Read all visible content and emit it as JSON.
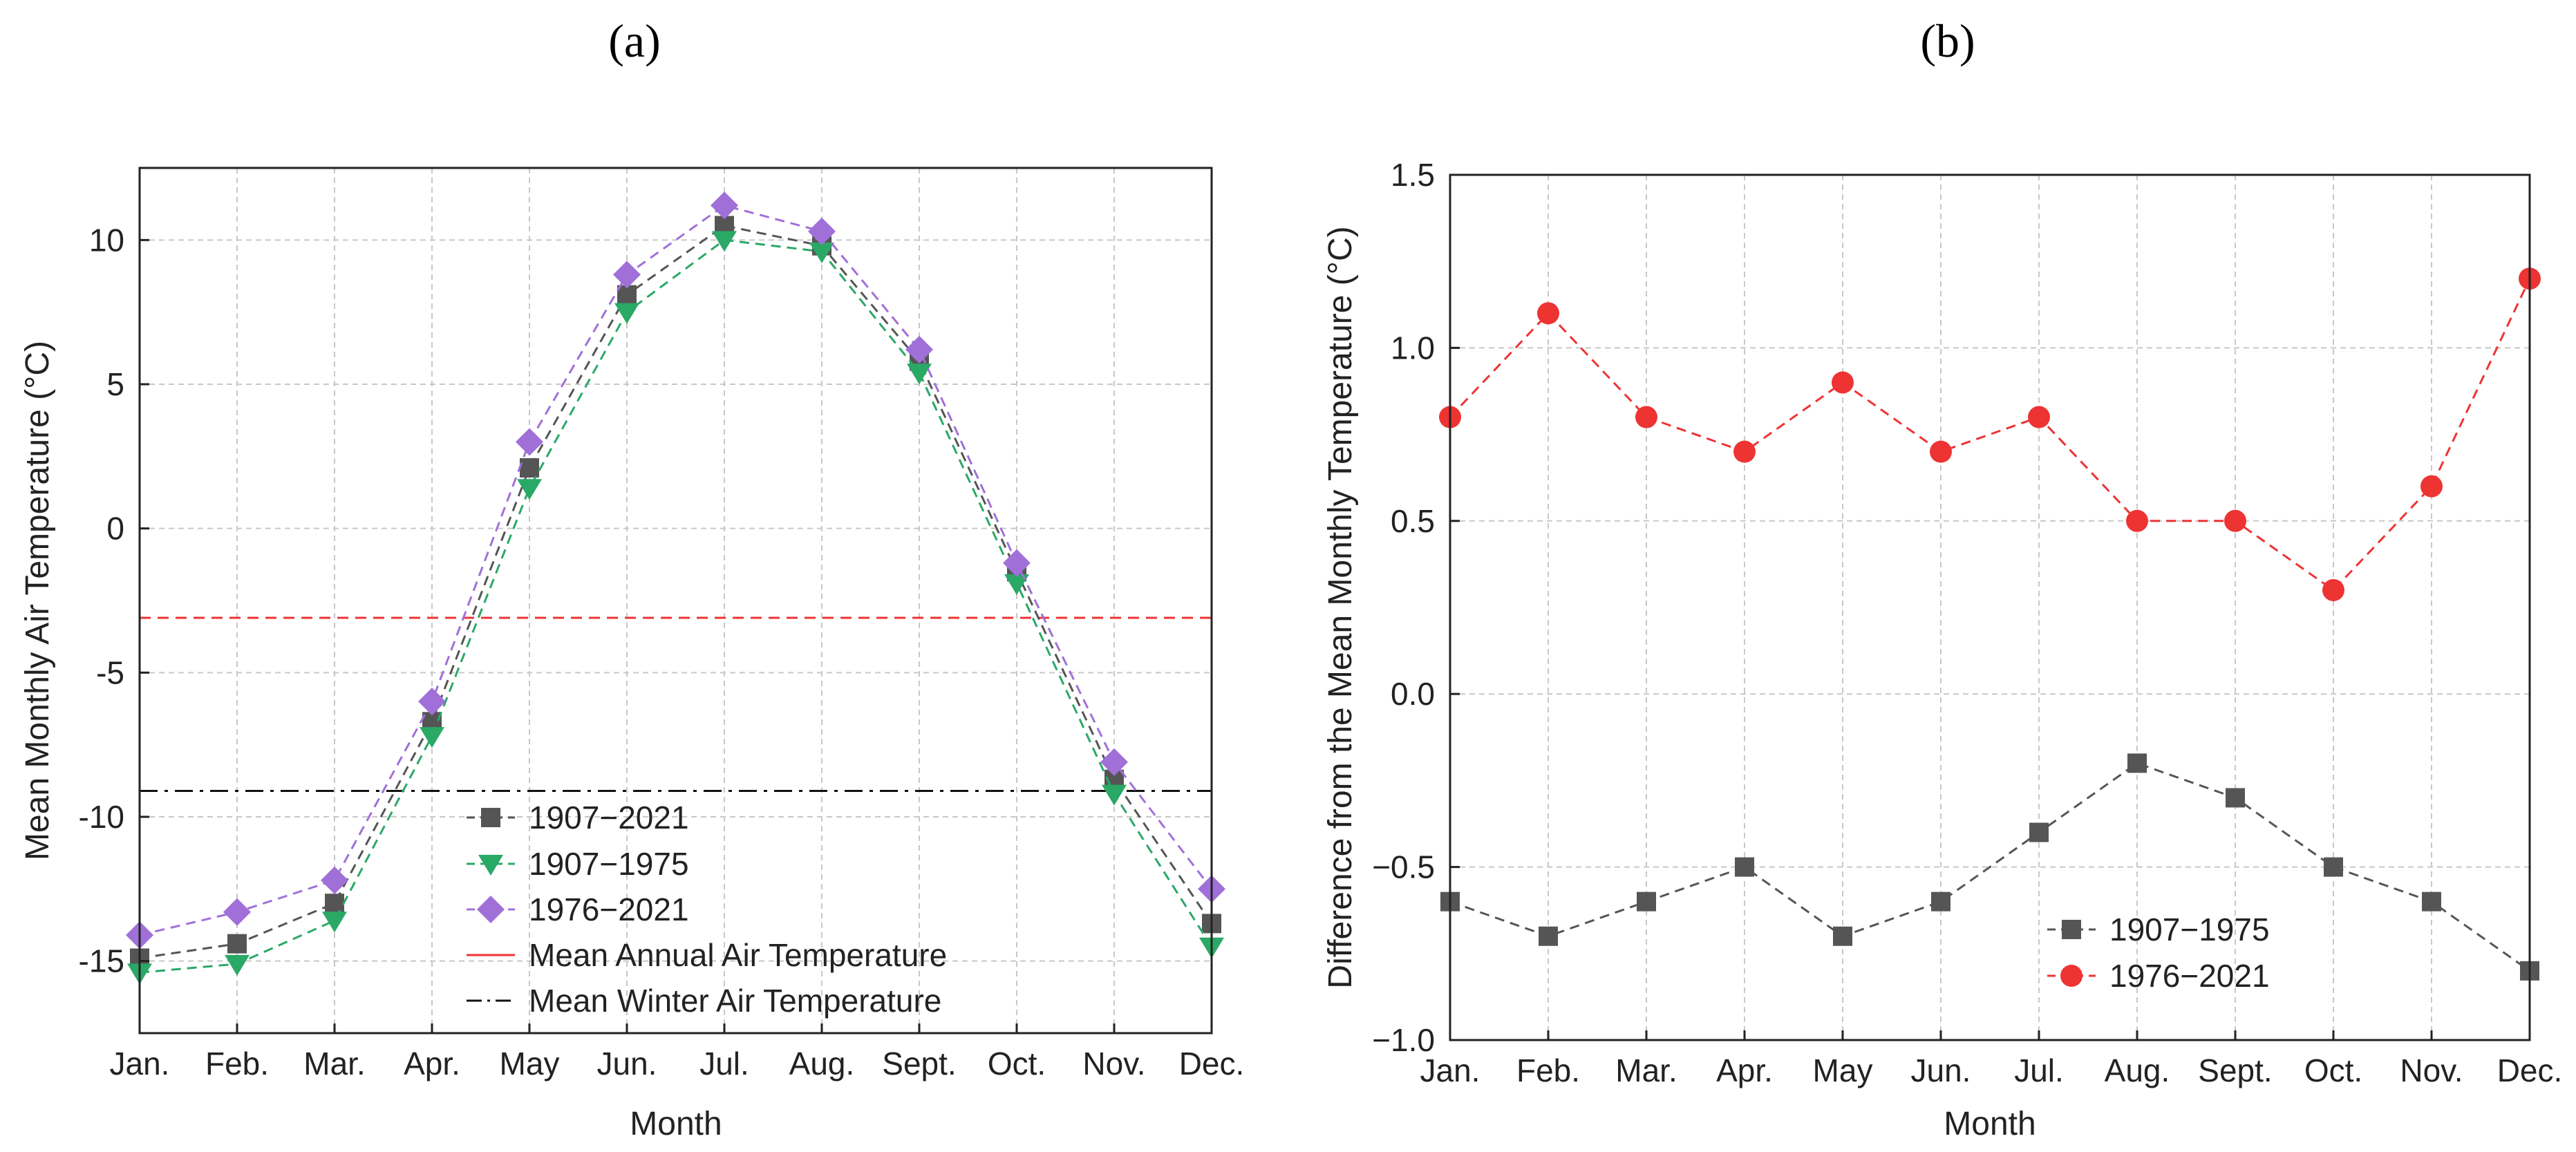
{
  "chart_data": [
    {
      "panel": "(a)",
      "type": "line",
      "xlabel": "Month",
      "ylabel": "Mean Monthly Air Temperature (°C)",
      "categories": [
        "Jan.",
        "Feb.",
        "Mar.",
        "Apr.",
        "May",
        "Jun.",
        "Jul.",
        "Aug.",
        "Sept.",
        "Oct.",
        "Nov.",
        "Dec."
      ],
      "ylim": [
        -17.5,
        12.5
      ],
      "yticks": [
        -15,
        -10,
        -5,
        0,
        5,
        10
      ],
      "grid": true,
      "legend_position": "bottom-center",
      "series": [
        {
          "name": "1907−2021",
          "color": "#555555",
          "marker": "square",
          "values": [
            -14.9,
            -14.4,
            -13.0,
            -6.7,
            2.1,
            8.1,
            10.5,
            9.8,
            5.8,
            -1.5,
            -8.7,
            -13.7
          ]
        },
        {
          "name": "1907−1975",
          "color": "#2aa866",
          "marker": "triangle-down",
          "values": [
            -15.4,
            -15.1,
            -13.6,
            -7.2,
            1.4,
            7.5,
            10.0,
            9.6,
            5.4,
            -1.9,
            -9.2,
            -14.5
          ]
        },
        {
          "name": "1976−2021",
          "color": "#a070d8",
          "marker": "diamond",
          "values": [
            -14.1,
            -13.3,
            -12.2,
            -6.0,
            3.0,
            8.8,
            11.2,
            10.3,
            6.2,
            -1.2,
            -8.1,
            -12.5
          ]
        }
      ],
      "reference_lines": [
        {
          "name": "Mean Annual Air Temperature",
          "value": -3.1,
          "color": "#ee3333",
          "style": "dashed"
        },
        {
          "name": "Mean Winter Air Temperature",
          "value": -9.1,
          "color": "#111111",
          "style": "dash-dot"
        }
      ]
    },
    {
      "panel": "(b)",
      "type": "line",
      "xlabel": "Month",
      "ylabel": "Difference from the Mean Monthly Temperature (°C)",
      "categories": [
        "Jan.",
        "Feb.",
        "Mar.",
        "Apr.",
        "May",
        "Jun.",
        "Jul.",
        "Aug.",
        "Sept.",
        "Oct.",
        "Nov.",
        "Dec."
      ],
      "ylim": [
        -1.0,
        1.5
      ],
      "yticks": [
        -1.0,
        -0.5,
        0.0,
        0.5,
        1.0,
        1.5
      ],
      "ytick_labels": [
        "−1.0",
        "−0.5",
        "0.0",
        "0.5",
        "1.0",
        "1.5"
      ],
      "grid": true,
      "legend_position": "bottom-center",
      "series": [
        {
          "name": "1907−1975",
          "color": "#555555",
          "marker": "square",
          "values": [
            -0.6,
            -0.7,
            -0.6,
            -0.5,
            -0.7,
            -0.6,
            -0.4,
            -0.2,
            -0.3,
            -0.5,
            -0.6,
            -0.8
          ]
        },
        {
          "name": "1976−2021",
          "color": "#ee3333",
          "marker": "circle",
          "values": [
            0.8,
            1.1,
            0.8,
            0.7,
            0.9,
            0.7,
            0.8,
            0.5,
            0.5,
            0.3,
            0.6,
            1.2
          ]
        }
      ]
    }
  ]
}
